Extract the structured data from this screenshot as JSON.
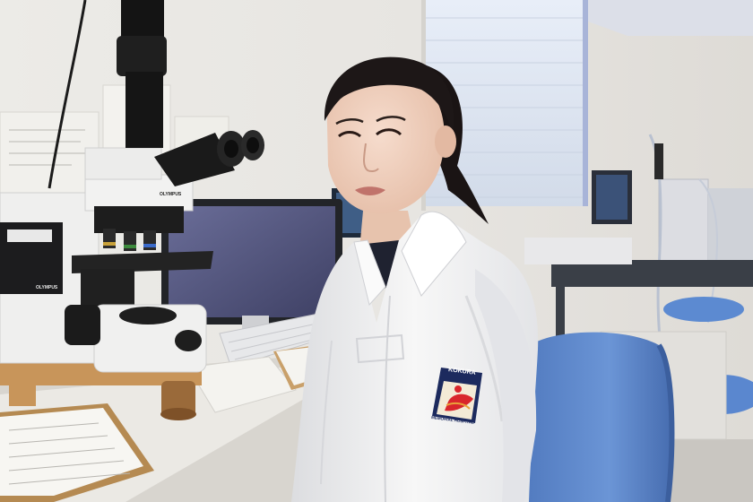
{
  "photo": {
    "patch": {
      "top_text": "KOKURA",
      "bottom_text": "MEMORIAL HOSPITAL",
      "colors": {
        "navy": "#1c2a5e",
        "red": "#d9262c",
        "cream": "#f3ead6"
      }
    },
    "microscope": {
      "brand_top": "OLYMPUS",
      "brand_base": "OLYMPUS"
    },
    "colors": {
      "wall": "#e9e7e3",
      "window": "#dfe6f2",
      "coat": "#f4f4f4",
      "hair": "#1a1414",
      "chair": "#5d86c9",
      "desk": "#e6e3dd",
      "monitor_screen": "#5b5e86"
    }
  }
}
